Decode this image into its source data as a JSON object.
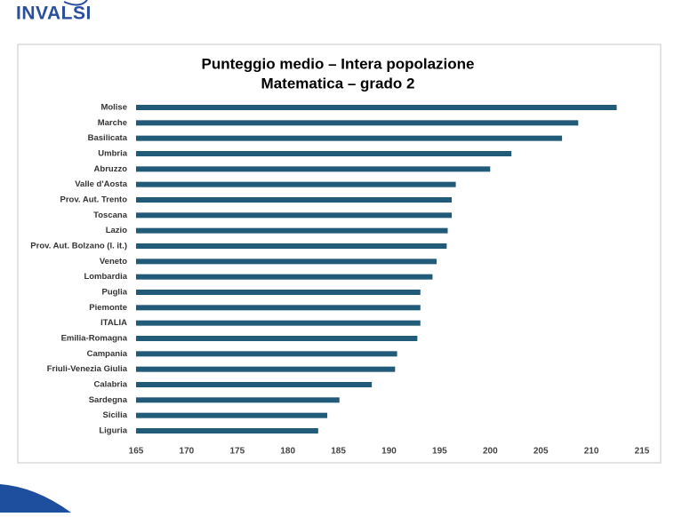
{
  "header": {
    "logo": "INVALSI"
  },
  "chart_data": {
    "type": "bar",
    "orientation": "horizontal",
    "title": "Punteggio medio – Intera popolazione",
    "subtitle": "Matematica – grado 2",
    "categories": [
      "Molise",
      "Marche",
      "Basilicata",
      "Umbria",
      "Abruzzo",
      "Valle d'Aosta",
      "Prov. Aut. Trento",
      "Toscana",
      "Lazio",
      "Prov. Aut. Bolzano (l. it.)",
      "Veneto",
      "Lombardia",
      "Puglia",
      "Piemonte",
      "ITALIA",
      "Emilia-Romagna",
      "Campania",
      "Friuli-Venezia Giulia",
      "Calabria",
      "Sardegna",
      "Sicilia",
      "Liguria"
    ],
    "values": [
      212.5,
      208.7,
      207.1,
      202.1,
      200.0,
      196.6,
      196.2,
      196.2,
      195.8,
      195.7,
      194.7,
      194.3,
      193.1,
      193.1,
      193.1,
      192.8,
      190.8,
      190.6,
      188.3,
      185.1,
      183.9,
      183.0
    ],
    "color": "#215b79",
    "xlim": [
      165,
      215
    ],
    "xticks": [
      165,
      170,
      175,
      180,
      185,
      190,
      195,
      200,
      205,
      210,
      215
    ],
    "grid": false
  }
}
